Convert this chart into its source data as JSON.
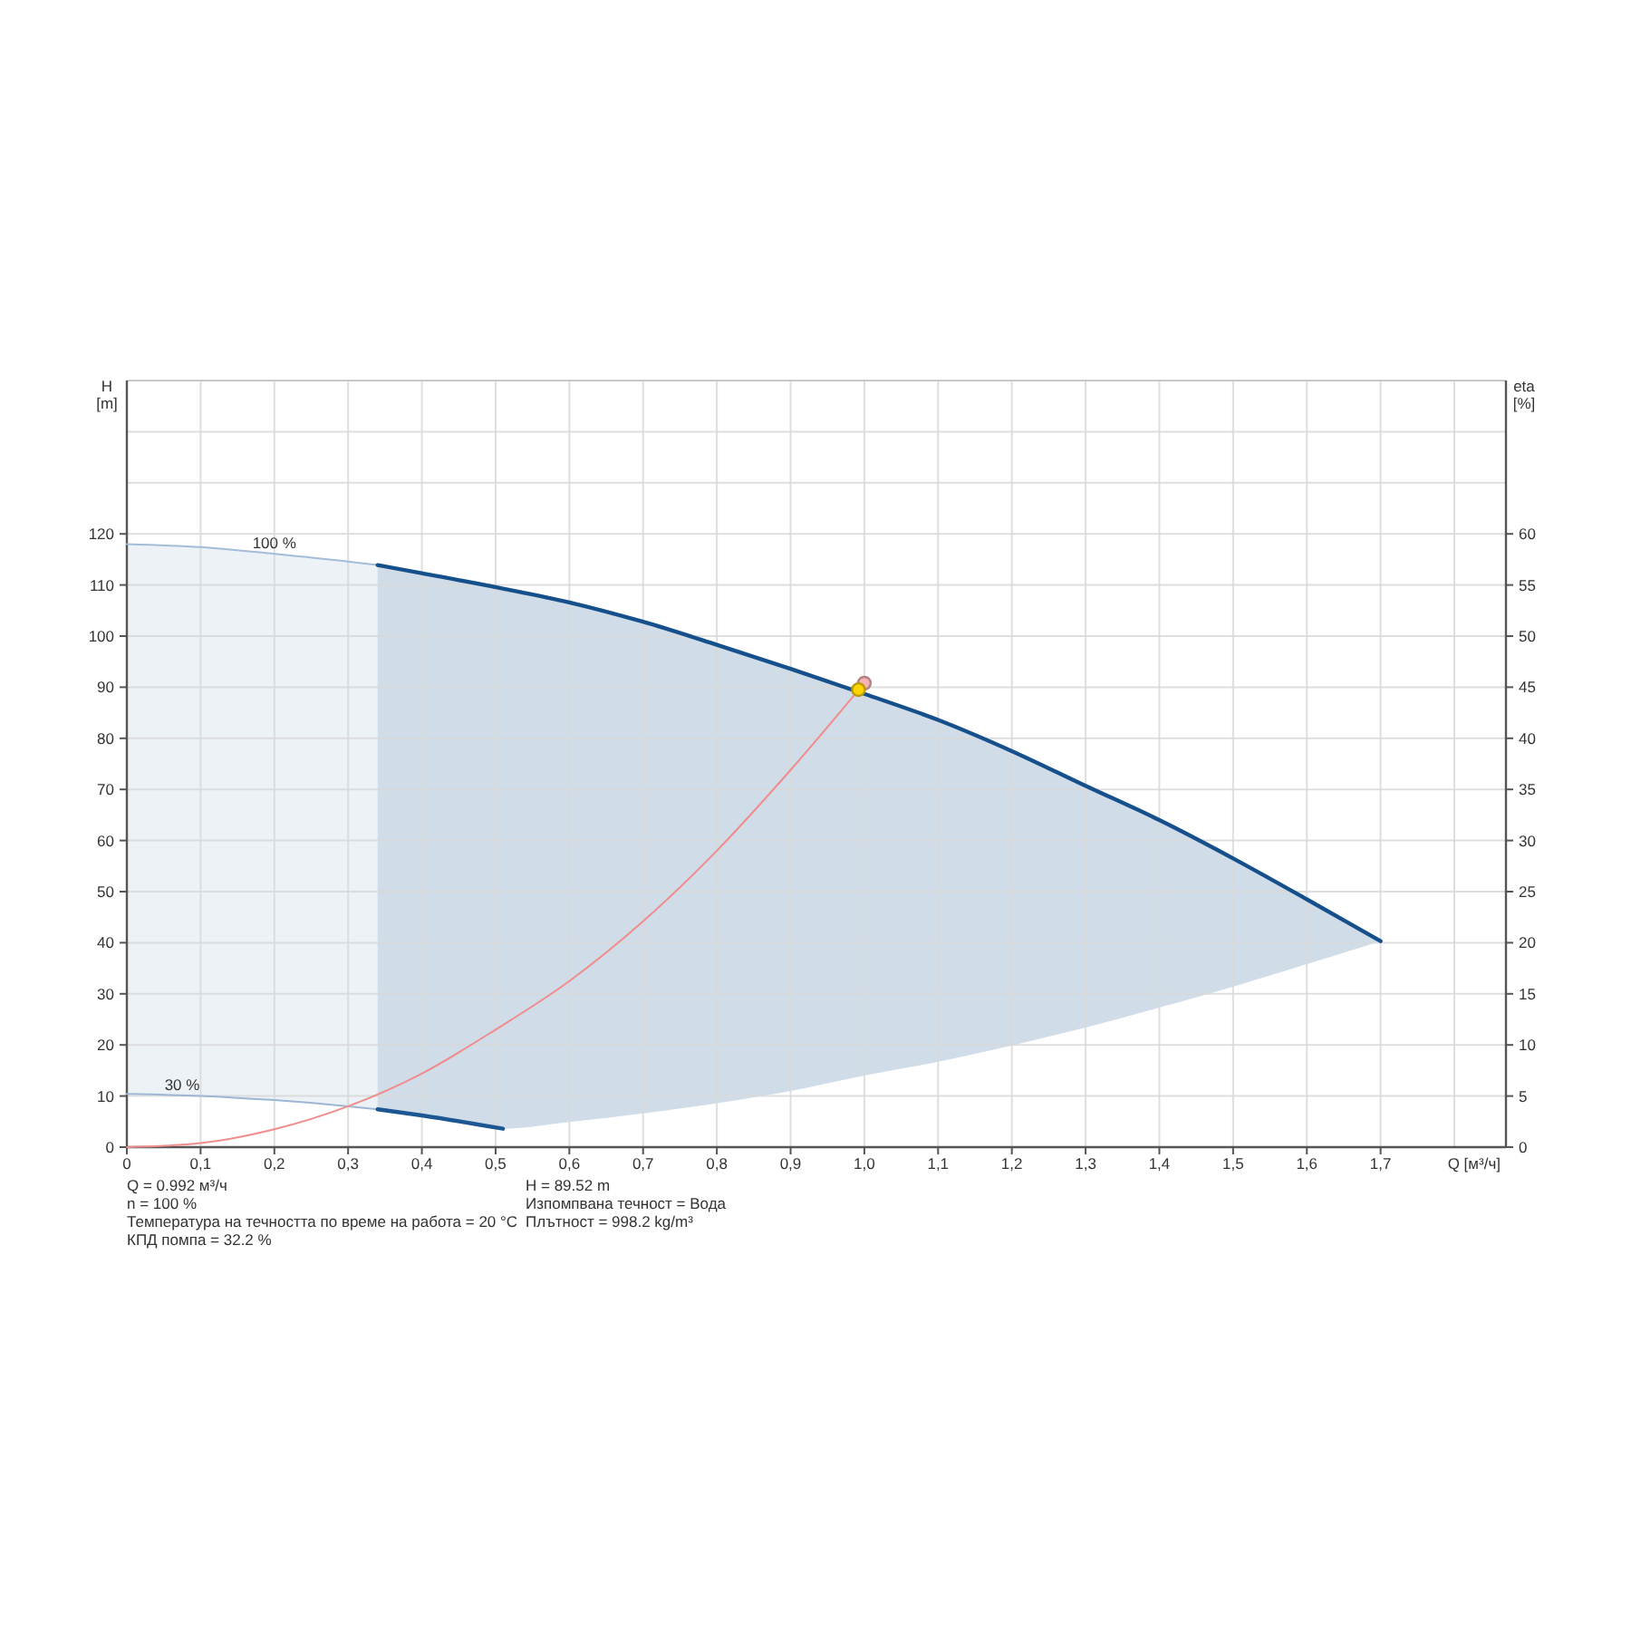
{
  "chart_data": {
    "type": "line",
    "xlabel": "Q [м³/ч]",
    "ylabel": "H [m]",
    "y2label": "eta [%]",
    "xlim": [
      0,
      1.87
    ],
    "xticks": [
      0,
      {
        "value": 0.1,
        "label": "0,1"
      },
      {
        "value": 0.2,
        "label": "0,2"
      },
      {
        "value": 0.3,
        "label": "0,3"
      },
      {
        "value": 0.4,
        "label": "0,4"
      },
      {
        "value": 0.5,
        "label": "0,5"
      },
      {
        "value": 0.6,
        "label": "0,6"
      },
      {
        "value": 0.7,
        "label": "0,7"
      },
      {
        "value": 0.8,
        "label": "0,8"
      },
      {
        "value": 0.9,
        "label": "0,9"
      },
      {
        "value": 1.0,
        "label": "1,0"
      },
      {
        "value": 1.1,
        "label": "1,1"
      },
      {
        "value": 1.2,
        "label": "1,2"
      },
      {
        "value": 1.3,
        "label": "1,3"
      },
      {
        "value": 1.4,
        "label": "1,4"
      },
      {
        "value": 1.5,
        "label": "1,5"
      },
      {
        "value": 1.6,
        "label": "1,6"
      },
      {
        "value": 1.7,
        "label": "1,7"
      },
      {
        "value": 1.8,
        "label": null
      }
    ],
    "ylim": [
      0,
      150
    ],
    "yticks": [
      0,
      10,
      20,
      30,
      40,
      50,
      60,
      70,
      80,
      90,
      100,
      110,
      120,
      {
        "value": 130,
        "label": null
      },
      {
        "value": 140,
        "label": null
      }
    ],
    "y2lim": [
      0,
      75
    ],
    "y2ticks": [
      0,
      5,
      10,
      15,
      20,
      25,
      30,
      35,
      40,
      45,
      50,
      55,
      60
    ],
    "grid": true,
    "series": [
      {
        "type": "line",
        "color": "#a3bcd8",
        "x": [
          0,
          0.1,
          0.2,
          0.3,
          0.34
        ],
        "values": [
          118.0,
          117.4,
          116.1,
          114.6,
          113.9
        ],
        "upper": [
          118.0,
          117.4,
          116.1,
          114.6,
          113.9
        ],
        "lower": [
          10.4,
          10.0,
          9.2,
          8.0,
          7.4
        ]
      },
      {
        "type": "line",
        "color": "#16508c",
        "x": [
          0.34,
          0.4,
          0.51,
          0.6,
          0.7,
          0.8,
          0.9,
          1.0,
          1.1,
          1.2,
          1.3,
          1.4,
          1.5,
          1.6,
          1.7
        ],
        "values": [
          113.9,
          112.3,
          109.3,
          106.6,
          102.8,
          98.3,
          93.6,
          88.7,
          83.6,
          77.5,
          70.7,
          64.0,
          56.5,
          48.5,
          40.3
        ],
        "upper": [
          113.9,
          112.3,
          109.3,
          106.6,
          102.8,
          98.3,
          93.6,
          88.7,
          83.6,
          77.5,
          70.7,
          64.0,
          56.5,
          48.5,
          40.3
        ],
        "lower": [
          7.4,
          6.2,
          3.6,
          4.9,
          6.6,
          8.6,
          11.0,
          14.0,
          16.7,
          19.9,
          23.4,
          27.3,
          31.4,
          35.8,
          40.3
        ]
      },
      {
        "type": "line",
        "color": "#9db6d3",
        "x": [
          0,
          0.1,
          0.2,
          0.3,
          0.34
        ],
        "values": [
          10.4,
          10.0,
          9.2,
          8.0,
          7.4
        ]
      },
      {
        "type": "line",
        "color": "#1d5793",
        "x": [
          0.34,
          0.4,
          0.51
        ],
        "values": [
          7.4,
          6.2,
          3.6
        ]
      },
      {
        "type": "line",
        "color": "#f08c8c",
        "x": [
          0,
          0.1,
          0.2,
          0.3,
          0.4,
          0.5,
          0.6,
          0.7,
          0.8,
          0.9,
          1.0
        ],
        "values": [
          0,
          0.8,
          3.5,
          8.0,
          14.4,
          23.0,
          32.5,
          44.2,
          58.0,
          73.8,
          90.8
        ]
      },
      {
        "type": "scatter",
        "marker": "circle",
        "color": "#f6b3b3",
        "x": [
          1.0
        ],
        "values": [
          90.8
        ]
      },
      {
        "type": "scatter",
        "marker": "circle",
        "color": "#ffd400",
        "x": [
          0.992
        ],
        "values": [
          89.52
        ]
      }
    ],
    "annotations": [
      {
        "text": "100 %",
        "x": 0.2,
        "y": 116.1
      },
      {
        "text": "30 %",
        "x": 0.075,
        "y": 10.1
      },
      "Q = 0.992 м³/ч",
      "n = 100 %",
      "Температура на течността по време на работа = 20 °C",
      "КПД помпа = 32.2 %",
      "H = 89.52 m",
      "Изпомпвана течност = Вода",
      "Плътност = 998.2 kg/m³"
    ]
  }
}
